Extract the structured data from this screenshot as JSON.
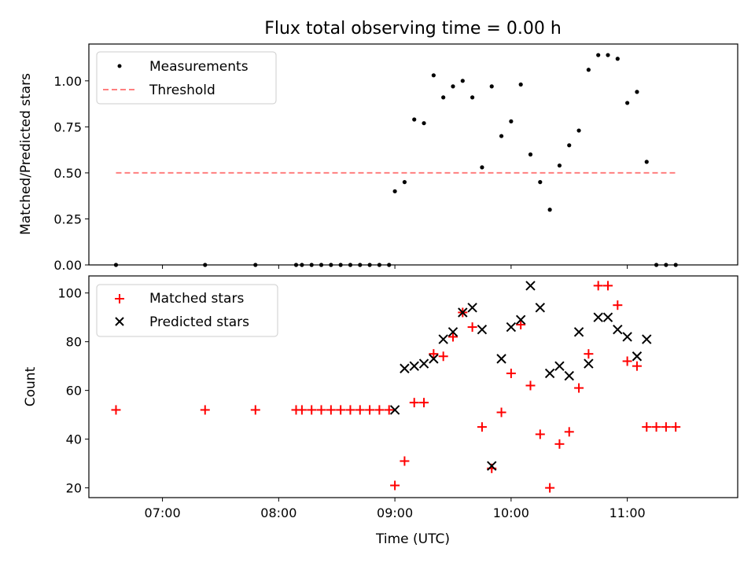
{
  "figure_title": "Flux total observing time = 0.00 h",
  "chart_data": [
    {
      "type": "scatter",
      "title": "Flux total observing time = 0.00 h",
      "xlabel": "",
      "ylabel": "Matched/Predicted stars",
      "xlim": [
        "06:22",
        "11:57"
      ],
      "ylim": [
        0.0,
        1.2
      ],
      "x_ticks": [
        "07:00",
        "08:00",
        "09:00",
        "10:00",
        "11:00"
      ],
      "y_ticks": [
        "0.00",
        "0.25",
        "0.50",
        "0.75",
        "1.00"
      ],
      "legend_position": "top-left",
      "series": [
        {
          "name": "Measurements",
          "marker": "dot",
          "color": "#000000",
          "points": [
            [
              "06:36",
              0.0
            ],
            [
              "07:22",
              0.0
            ],
            [
              "07:48",
              0.0
            ],
            [
              "08:09",
              0.0
            ],
            [
              "08:12",
              0.0
            ],
            [
              "08:17",
              0.0
            ],
            [
              "08:22",
              0.0
            ],
            [
              "08:27",
              0.0
            ],
            [
              "08:32",
              0.0
            ],
            [
              "08:37",
              0.0
            ],
            [
              "08:42",
              0.0
            ],
            [
              "08:47",
              0.0
            ],
            [
              "08:52",
              0.0
            ],
            [
              "08:57",
              0.0
            ],
            [
              "09:00",
              0.4
            ],
            [
              "09:05",
              0.45
            ],
            [
              "09:10",
              0.79
            ],
            [
              "09:15",
              0.77
            ],
            [
              "09:20",
              1.03
            ],
            [
              "09:25",
              0.91
            ],
            [
              "09:30",
              0.97
            ],
            [
              "09:35",
              1.0
            ],
            [
              "09:40",
              0.91
            ],
            [
              "09:45",
              0.53
            ],
            [
              "09:50",
              0.97
            ],
            [
              "09:55",
              0.7
            ],
            [
              "10:00",
              0.78
            ],
            [
              "10:05",
              0.98
            ],
            [
              "10:10",
              0.6
            ],
            [
              "10:15",
              0.45
            ],
            [
              "10:20",
              0.3
            ],
            [
              "10:25",
              0.54
            ],
            [
              "10:30",
              0.65
            ],
            [
              "10:35",
              0.73
            ],
            [
              "10:40",
              1.06
            ],
            [
              "10:45",
              1.14
            ],
            [
              "10:50",
              1.14
            ],
            [
              "10:55",
              1.12
            ],
            [
              "11:00",
              0.88
            ],
            [
              "11:05",
              0.94
            ],
            [
              "11:10",
              0.56
            ],
            [
              "11:15",
              0.0
            ],
            [
              "11:20",
              0.0
            ],
            [
              "11:25",
              0.0
            ]
          ]
        },
        {
          "name": "Threshold",
          "marker": "dashed-line",
          "color": "#ff7f7f",
          "points": [
            [
              "06:36",
              0.5
            ],
            [
              "11:25",
              0.5
            ]
          ]
        }
      ]
    },
    {
      "type": "scatter",
      "title": "",
      "xlabel": "Time (UTC)",
      "ylabel": "Count",
      "xlim": [
        "06:22",
        "11:57"
      ],
      "ylim": [
        16,
        107
      ],
      "x_ticks": [
        "07:00",
        "08:00",
        "09:00",
        "10:00",
        "11:00"
      ],
      "y_ticks": [
        "20",
        "40",
        "60",
        "80",
        "100"
      ],
      "legend_position": "top-left",
      "series": [
        {
          "name": "Matched stars",
          "marker": "plus",
          "color": "#ff0000",
          "points": [
            [
              "06:36",
              52
            ],
            [
              "07:22",
              52
            ],
            [
              "07:48",
              52
            ],
            [
              "08:09",
              52
            ],
            [
              "08:12",
              52
            ],
            [
              "08:17",
              52
            ],
            [
              "08:22",
              52
            ],
            [
              "08:27",
              52
            ],
            [
              "08:32",
              52
            ],
            [
              "08:37",
              52
            ],
            [
              "08:42",
              52
            ],
            [
              "08:47",
              52
            ],
            [
              "08:52",
              52
            ],
            [
              "08:57",
              52
            ],
            [
              "09:00",
              21
            ],
            [
              "09:05",
              31
            ],
            [
              "09:10",
              55
            ],
            [
              "09:15",
              55
            ],
            [
              "09:20",
              75
            ],
            [
              "09:25",
              74
            ],
            [
              "09:30",
              82
            ],
            [
              "09:35",
              92
            ],
            [
              "09:40",
              86
            ],
            [
              "09:45",
              45
            ],
            [
              "09:50",
              28
            ],
            [
              "09:55",
              51
            ],
            [
              "10:00",
              67
            ],
            [
              "10:05",
              87
            ],
            [
              "10:10",
              62
            ],
            [
              "10:15",
              42
            ],
            [
              "10:20",
              20
            ],
            [
              "10:25",
              38
            ],
            [
              "10:30",
              43
            ],
            [
              "10:35",
              61
            ],
            [
              "10:40",
              75
            ],
            [
              "10:45",
              103
            ],
            [
              "10:50",
              103
            ],
            [
              "10:55",
              95
            ],
            [
              "11:00",
              72
            ],
            [
              "11:05",
              70
            ],
            [
              "11:10",
              45
            ],
            [
              "11:15",
              45
            ],
            [
              "11:20",
              45
            ],
            [
              "11:25",
              45
            ]
          ]
        },
        {
          "name": "Predicted stars",
          "marker": "x",
          "color": "#000000",
          "points": [
            [
              "09:00",
              52
            ],
            [
              "09:05",
              69
            ],
            [
              "09:10",
              70
            ],
            [
              "09:15",
              71
            ],
            [
              "09:20",
              73
            ],
            [
              "09:25",
              81
            ],
            [
              "09:30",
              84
            ],
            [
              "09:35",
              92
            ],
            [
              "09:40",
              94
            ],
            [
              "09:45",
              85
            ],
            [
              "09:50",
              29
            ],
            [
              "09:55",
              73
            ],
            [
              "10:00",
              86
            ],
            [
              "10:05",
              89
            ],
            [
              "10:10",
              103
            ],
            [
              "10:15",
              94
            ],
            [
              "10:20",
              67
            ],
            [
              "10:25",
              70
            ],
            [
              "10:30",
              66
            ],
            [
              "10:35",
              84
            ],
            [
              "10:40",
              71
            ],
            [
              "10:45",
              90
            ],
            [
              "10:50",
              90
            ],
            [
              "10:55",
              85
            ],
            [
              "11:00",
              82
            ],
            [
              "11:05",
              74
            ],
            [
              "11:10",
              81
            ]
          ]
        }
      ]
    }
  ]
}
